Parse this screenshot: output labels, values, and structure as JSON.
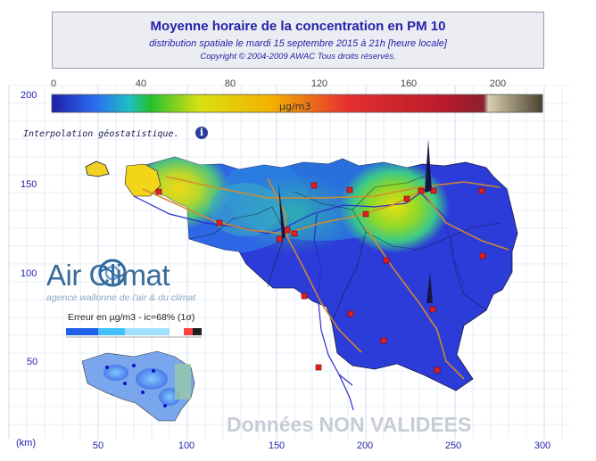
{
  "title": "Moyenne horaire de la concentration en PM 10",
  "subtitle": "distribution spatiale le mardi 15 septembre 2015 à 21h [heure locale]",
  "copyright": "Copyright © 2004-2009 AWAC Tous droits réservés.",
  "scale": {
    "ticks": [
      "0",
      "40",
      "80",
      "120",
      "160",
      "200"
    ],
    "unit": "µg/m3",
    "colors": [
      "#1e1ea8",
      "#2a6ff0",
      "#1fc0c0",
      "#22c030",
      "#d8e010",
      "#f3b000",
      "#e63030",
      "#b81a2a",
      "#8a2030",
      "#5c4030",
      "#e3d8c0"
    ]
  },
  "interpolation_label": "Interpolation géostatistique.",
  "info_icon": "info-icon",
  "axis": {
    "y_ticks": [
      "200",
      "150",
      "100",
      "50"
    ],
    "x_ticks": [
      "50",
      "100",
      "150",
      "200",
      "250",
      "300"
    ],
    "unit": "(km)"
  },
  "logo": {
    "name": "Air Climat",
    "tagline": "agence wallonne de l'air & du climat"
  },
  "error_map": {
    "label": "Erreur en µg/m3 - ic=68% (1σ)"
  },
  "watermark": "Données NON VALIDEES",
  "colors": {
    "title": "#2323a8",
    "grid": "#b8cce8",
    "station": "#e02020",
    "river": "#2b2bd0",
    "road": "#d88a2a",
    "low": "#2c3cd8",
    "high": "#d8e010"
  }
}
